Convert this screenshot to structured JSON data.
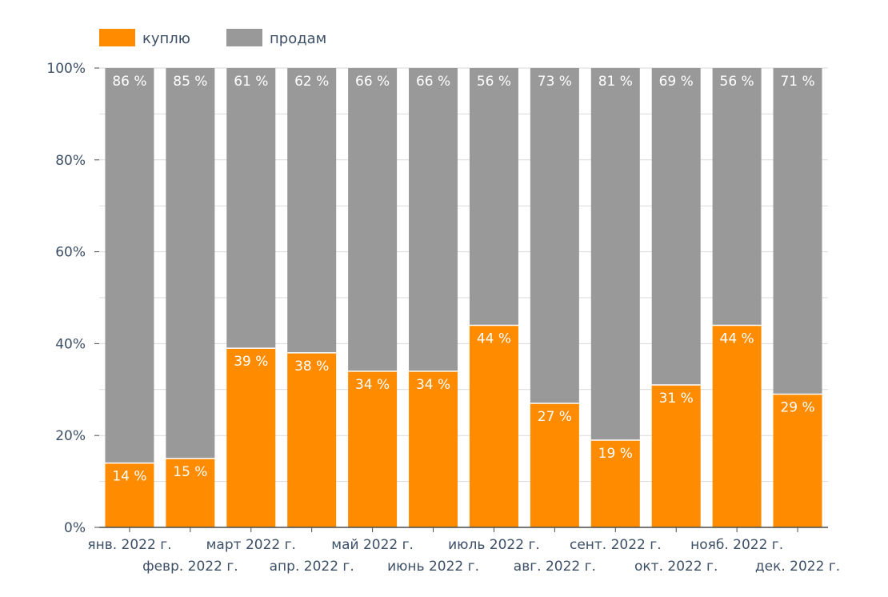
{
  "chart_data": {
    "type": "bar",
    "stacked": true,
    "categories": [
      "янв. 2022 г.",
      "февр. 2022 г.",
      "март 2022 г.",
      "апр. 2022 г.",
      "май 2022 г.",
      "июнь 2022 г.",
      "июль 2022 г.",
      "авг. 2022 г.",
      "сент. 2022 г.",
      "окт. 2022 г.",
      "нояб. 2022 г.",
      "дек. 2022 г."
    ],
    "series": [
      {
        "name": "куплю",
        "color": "#ff8c00",
        "values": [
          14,
          15,
          39,
          38,
          34,
          34,
          44,
          27,
          19,
          31,
          44,
          29
        ],
        "labels": [
          "14 %",
          "15 %",
          "39 %",
          "38 %",
          "34 %",
          "34 %",
          "44 %",
          "27 %",
          "19 %",
          "31 %",
          "44 %",
          "29 %"
        ]
      },
      {
        "name": "продам",
        "color": "#999999",
        "values": [
          86,
          85,
          61,
          62,
          66,
          66,
          56,
          73,
          81,
          69,
          56,
          71
        ],
        "labels": [
          "86 %",
          "85 %",
          "61 %",
          "62 %",
          "66 %",
          "66 %",
          "56 %",
          "73 %",
          "81 %",
          "69 %",
          "56 %",
          "71 %"
        ]
      }
    ],
    "ylim": [
      0,
      100
    ],
    "yticks": [
      0,
      20,
      40,
      60,
      80,
      100
    ],
    "ytick_labels": [
      "0%",
      "20%",
      "40%",
      "60%",
      "80%",
      "100%"
    ],
    "legend": "top-left",
    "grid": true,
    "title": "",
    "xlabel": "",
    "ylabel": ""
  }
}
